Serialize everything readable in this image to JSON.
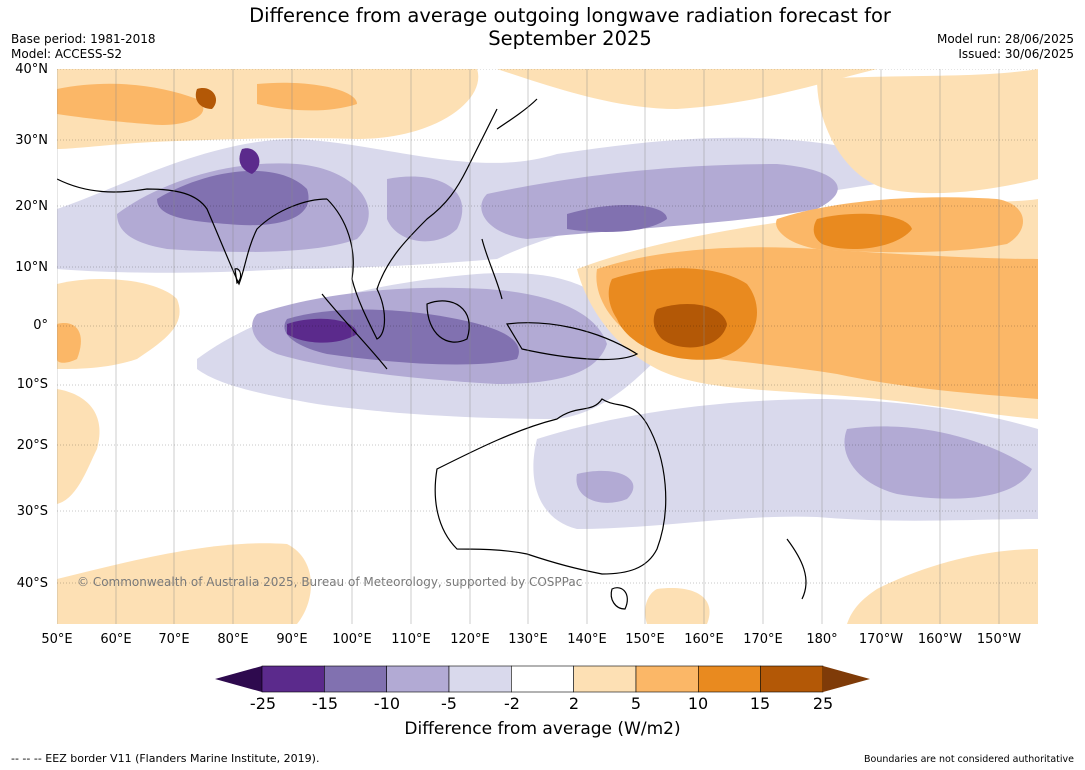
{
  "title_line1": "Difference from average outgoing longwave radiation forecast for",
  "title_line2": "September 2025",
  "base_period": "Base period: 1981-2018",
  "model": "Model: ACCESS-S2",
  "model_run": "Model run: 28/06/2025",
  "issued": "Issued: 30/06/2025",
  "copyright": "© Commonwealth of Australia 2025, Bureau of Meteorology, supported by COSPPac",
  "lat_labels": [
    "40°N",
    "30°N",
    "20°N",
    "10°N",
    "0°",
    "10°S",
    "20°S",
    "30°S",
    "40°S"
  ],
  "lon_labels": [
    "50°E",
    "60°E",
    "70°E",
    "80°E",
    "90°E",
    "100°E",
    "110°E",
    "120°E",
    "130°E",
    "140°E",
    "150°E",
    "160°E",
    "170°E",
    "180°",
    "170°W",
    "160°W",
    "150°W"
  ],
  "colorbar": {
    "ticks": [
      "-25",
      "-15",
      "-10",
      "-5",
      "-2",
      "2",
      "5",
      "10",
      "15",
      "25"
    ],
    "colors": [
      "#2e0a4e",
      "#5b2a8c",
      "#8171b0",
      "#b2aad4",
      "#d9d9ec",
      "#ffffff",
      "#fde0b4",
      "#fbb767",
      "#e98a1f",
      "#b35806",
      "#7f3b08"
    ],
    "label": "Difference from average (W/m2)"
  },
  "footer_left": "--  --  -- EEZ border V11 (Flanders Marine Institute, 2019).",
  "footer_right": "Boundaries are not considered authoritative"
}
